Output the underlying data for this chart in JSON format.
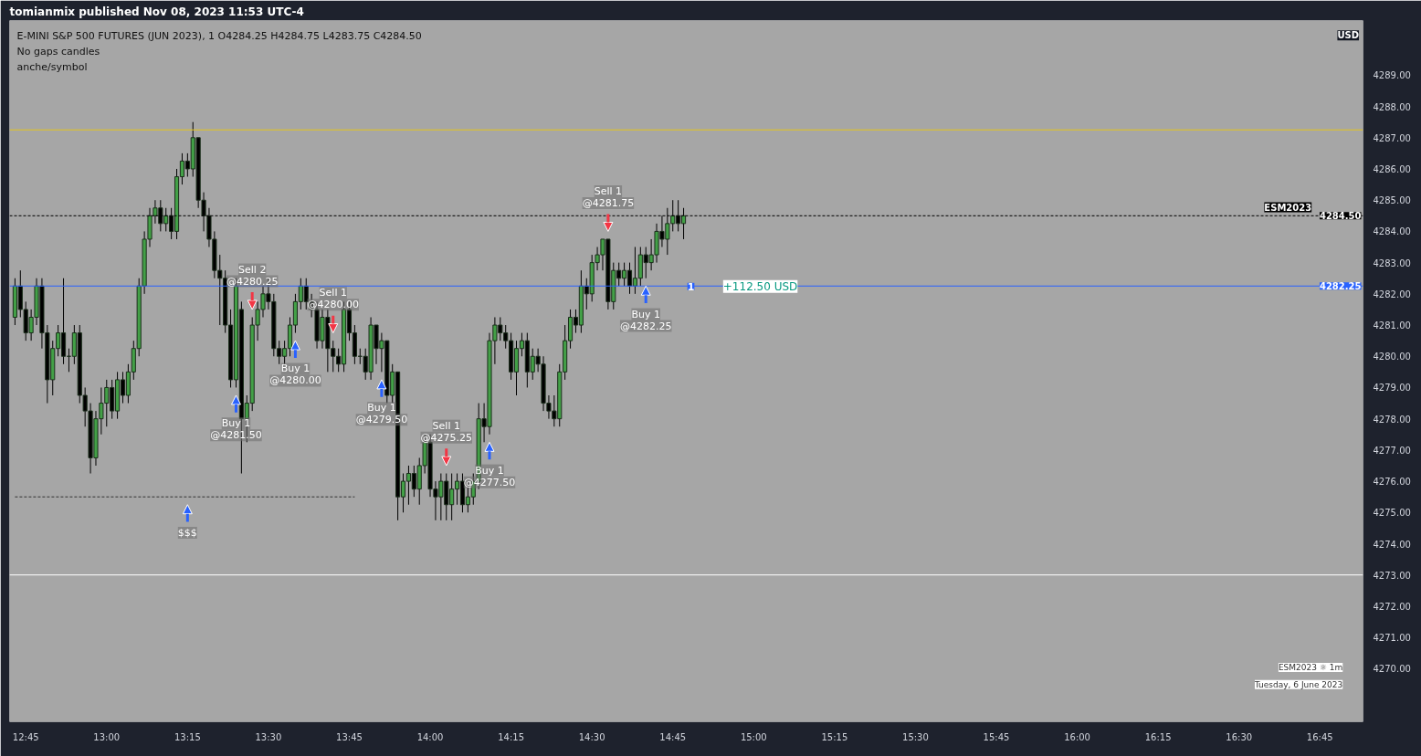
{
  "chart_data": {
    "type": "candlestick",
    "title": "E-MINI S&P 500 FUTURES (JUN 2023), 1  O4284.25  H4284.75  L4283.75  C4284.50",
    "x": [
      "2023-06-06T12:43",
      "2023-06-06T12:44",
      "2023-06-06T12:45",
      "2023-06-06T12:46",
      "2023-06-06T12:47",
      "2023-06-06T12:48",
      "2023-06-06T12:49",
      "2023-06-06T12:50",
      "2023-06-06T12:51",
      "2023-06-06T12:52",
      "2023-06-06T12:53",
      "2023-06-06T12:54",
      "2023-06-06T12:55",
      "2023-06-06T12:56",
      "2023-06-06T12:57",
      "2023-06-06T12:58",
      "2023-06-06T12:59",
      "2023-06-06T13:00",
      "2023-06-06T13:01",
      "2023-06-06T13:02",
      "2023-06-06T13:03",
      "2023-06-06T13:04",
      "2023-06-06T13:05",
      "2023-06-06T13:06",
      "2023-06-06T13:07",
      "2023-06-06T13:08",
      "2023-06-06T13:09",
      "2023-06-06T13:10",
      "2023-06-06T13:11",
      "2023-06-06T13:12",
      "2023-06-06T13:13",
      "2023-06-06T13:14",
      "2023-06-06T13:15",
      "2023-06-06T13:16",
      "2023-06-06T13:17",
      "2023-06-06T13:18",
      "2023-06-06T13:19",
      "2023-06-06T13:20",
      "2023-06-06T13:21",
      "2023-06-06T13:22",
      "2023-06-06T13:23",
      "2023-06-06T13:24",
      "2023-06-06T13:25",
      "2023-06-06T13:26",
      "2023-06-06T13:27",
      "2023-06-06T13:28",
      "2023-06-06T13:29",
      "2023-06-06T13:30",
      "2023-06-06T13:31",
      "2023-06-06T13:32",
      "2023-06-06T13:33",
      "2023-06-06T13:34",
      "2023-06-06T13:35",
      "2023-06-06T13:36",
      "2023-06-06T13:37",
      "2023-06-06T13:38",
      "2023-06-06T13:39",
      "2023-06-06T13:40",
      "2023-06-06T13:41",
      "2023-06-06T13:42",
      "2023-06-06T13:43",
      "2023-06-06T13:44",
      "2023-06-06T13:45",
      "2023-06-06T13:46",
      "2023-06-06T13:47",
      "2023-06-06T13:48",
      "2023-06-06T13:49",
      "2023-06-06T13:50",
      "2023-06-06T13:51",
      "2023-06-06T13:52",
      "2023-06-06T13:53",
      "2023-06-06T13:54",
      "2023-06-06T13:55",
      "2023-06-06T13:56",
      "2023-06-06T13:57",
      "2023-06-06T13:58",
      "2023-06-06T13:59",
      "2023-06-06T14:00",
      "2023-06-06T14:01",
      "2023-06-06T14:02",
      "2023-06-06T14:03",
      "2023-06-06T14:04",
      "2023-06-06T14:05",
      "2023-06-06T14:06",
      "2023-06-06T14:07",
      "2023-06-06T14:08",
      "2023-06-06T14:09",
      "2023-06-06T14:10",
      "2023-06-06T14:11",
      "2023-06-06T14:12",
      "2023-06-06T14:13",
      "2023-06-06T14:14",
      "2023-06-06T14:15",
      "2023-06-06T14:16",
      "2023-06-06T14:17",
      "2023-06-06T14:18",
      "2023-06-06T14:19",
      "2023-06-06T14:20",
      "2023-06-06T14:21",
      "2023-06-06T14:22",
      "2023-06-06T14:23",
      "2023-06-06T14:24",
      "2023-06-06T14:25",
      "2023-06-06T14:26",
      "2023-06-06T14:27",
      "2023-06-06T14:28",
      "2023-06-06T14:29",
      "2023-06-06T14:30",
      "2023-06-06T14:31",
      "2023-06-06T14:32",
      "2023-06-06T14:33",
      "2023-06-06T14:34",
      "2023-06-06T14:35",
      "2023-06-06T14:36",
      "2023-06-06T14:37",
      "2023-06-06T14:38",
      "2023-06-06T14:39",
      "2023-06-06T14:40",
      "2023-06-06T14:41",
      "2023-06-06T14:42",
      "2023-06-06T14:43",
      "2023-06-06T14:44",
      "2023-06-06T14:45",
      "2023-06-06T14:46",
      "2023-06-06T14:47"
    ],
    "ohlc": [
      [
        4281.25,
        4282.5,
        4281.0,
        4282.25
      ],
      [
        4282.25,
        4282.75,
        4281.25,
        4281.5
      ],
      [
        4281.5,
        4281.75,
        4280.5,
        4280.75
      ],
      [
        4280.75,
        4281.5,
        4280.5,
        4281.25
      ],
      [
        4281.25,
        4282.5,
        4281.0,
        4282.25
      ],
      [
        4282.25,
        4282.5,
        4280.25,
        4280.75
      ],
      [
        4280.75,
        4281.0,
        4278.5,
        4279.25
      ],
      [
        4279.25,
        4280.5,
        4278.75,
        4280.25
      ],
      [
        4280.25,
        4281.0,
        4280.0,
        4280.75
      ],
      [
        4280.75,
        4282.5,
        4279.75,
        4280.0
      ],
      [
        4280.0,
        4280.25,
        4279.5,
        4280.0
      ],
      [
        4280.0,
        4281.0,
        4279.75,
        4280.75
      ],
      [
        4280.75,
        4281.0,
        4278.5,
        4278.75
      ],
      [
        4278.75,
        4279.0,
        4277.75,
        4278.25
      ],
      [
        4278.25,
        4278.5,
        4276.25,
        4276.75
      ],
      [
        4276.75,
        4278.25,
        4276.5,
        4278.0
      ],
      [
        4278.0,
        4279.0,
        4277.5,
        4278.5
      ],
      [
        4278.5,
        4279.25,
        4277.75,
        4279.0
      ],
      [
        4279.0,
        4279.25,
        4278.0,
        4278.25
      ],
      [
        4278.25,
        4279.5,
        4278.0,
        4279.25
      ],
      [
        4279.25,
        4279.5,
        4278.5,
        4278.75
      ],
      [
        4278.75,
        4279.75,
        4278.5,
        4279.5
      ],
      [
        4279.5,
        4280.5,
        4279.25,
        4280.25
      ],
      [
        4280.25,
        4282.5,
        4280.0,
        4282.25
      ],
      [
        4282.25,
        4284.0,
        4282.0,
        4283.75
      ],
      [
        4283.75,
        4284.75,
        4283.5,
        4284.5
      ],
      [
        4284.5,
        4285.0,
        4284.25,
        4284.75
      ],
      [
        4284.75,
        4285.0,
        4284.0,
        4284.25
      ],
      [
        4284.25,
        4284.75,
        4284.0,
        4284.5
      ],
      [
        4284.5,
        4284.75,
        4283.75,
        4284.0
      ],
      [
        4284.0,
        4286.0,
        4283.75,
        4285.75
      ],
      [
        4285.75,
        4286.5,
        4285.5,
        4286.25
      ],
      [
        4286.25,
        4286.5,
        4285.75,
        4286.0
      ],
      [
        4286.0,
        4287.5,
        4285.75,
        4287.0
      ],
      [
        4287.0,
        4287.0,
        4284.75,
        4285.0
      ],
      [
        4285.0,
        4285.25,
        4284.0,
        4284.5
      ],
      [
        4284.5,
        4284.75,
        4283.5,
        4283.75
      ],
      [
        4283.75,
        4284.0,
        4282.5,
        4282.75
      ],
      [
        4282.75,
        4283.25,
        4281.0,
        4282.5
      ],
      [
        4282.5,
        4282.75,
        4280.75,
        4281.0
      ],
      [
        4281.0,
        4281.5,
        4279.0,
        4279.25
      ],
      [
        4279.25,
        4282.5,
        4279.0,
        4282.25
      ],
      [
        4281.5,
        4281.75,
        4276.25,
        4278.0
      ],
      [
        4278.0,
        4278.75,
        4277.25,
        4278.5
      ],
      [
        4278.5,
        4281.25,
        4278.25,
        4281.0
      ],
      [
        4281.0,
        4281.75,
        4280.5,
        4281.5
      ],
      [
        4281.5,
        4282.25,
        4281.25,
        4282.0
      ],
      [
        4282.0,
        4282.5,
        4281.5,
        4281.75
      ],
      [
        4281.75,
        4282.0,
        4280.0,
        4280.25
      ],
      [
        4280.25,
        4280.5,
        4279.75,
        4280.0
      ],
      [
        4280.0,
        4280.5,
        4279.75,
        4280.25
      ],
      [
        4280.25,
        4281.25,
        4280.0,
        4281.0
      ],
      [
        4281.0,
        4282.0,
        4280.75,
        4281.75
      ],
      [
        4281.75,
        4282.5,
        4281.5,
        4282.25
      ],
      [
        4282.25,
        4282.5,
        4281.5,
        4281.75
      ],
      [
        4281.75,
        4282.0,
        4281.25,
        4281.5
      ],
      [
        4281.5,
        4281.75,
        4280.25,
        4280.5
      ],
      [
        4280.5,
        4281.5,
        4280.25,
        4281.25
      ],
      [
        4281.25,
        4281.5,
        4279.5,
        4280.25
      ],
      [
        4280.25,
        4280.5,
        4279.5,
        4280.0
      ],
      [
        4280.0,
        4280.25,
        4279.5,
        4279.75
      ],
      [
        4279.75,
        4281.75,
        4279.5,
        4281.5
      ],
      [
        4281.5,
        4281.75,
        4280.5,
        4280.75
      ],
      [
        4280.75,
        4281.0,
        4279.75,
        4280.0
      ],
      [
        4280.0,
        4280.25,
        4279.75,
        4280.0
      ],
      [
        4280.0,
        4280.25,
        4279.25,
        4279.5
      ],
      [
        4279.5,
        4281.25,
        4279.25,
        4281.0
      ],
      [
        4281.0,
        4281.0,
        4279.75,
        4280.25
      ],
      [
        4280.25,
        4280.75,
        4279.5,
        4280.5
      ],
      [
        4280.5,
        4280.5,
        4278.5,
        4278.75
      ],
      [
        4278.75,
        4279.75,
        4278.5,
        4279.5
      ],
      [
        4279.5,
        4279.5,
        4274.75,
        4275.5
      ],
      [
        4275.5,
        4276.25,
        4275.0,
        4276.0
      ],
      [
        4276.0,
        4276.5,
        4275.25,
        4276.25
      ],
      [
        4276.25,
        4276.5,
        4275.5,
        4275.75
      ],
      [
        4275.75,
        4276.75,
        4275.25,
        4276.5
      ],
      [
        4276.5,
        4277.5,
        4276.25,
        4277.25
      ],
      [
        4277.25,
        4277.5,
        4275.5,
        4275.75
      ],
      [
        4275.75,
        4276.0,
        4274.75,
        4275.5
      ],
      [
        4275.5,
        4276.25,
        4274.75,
        4276.0
      ],
      [
        4276.0,
        4276.25,
        4274.75,
        4275.25
      ],
      [
        4275.25,
        4276.25,
        4274.75,
        4275.75
      ],
      [
        4275.75,
        4276.25,
        4275.25,
        4276.0
      ],
      [
        4276.0,
        4276.25,
        4275.0,
        4275.25
      ],
      [
        4275.25,
        4276.0,
        4275.0,
        4275.5
      ],
      [
        4275.5,
        4276.25,
        4275.25,
        4276.0
      ],
      [
        4276.0,
        4278.5,
        4275.75,
        4278.0
      ],
      [
        4278.0,
        4278.5,
        4277.25,
        4277.75
      ],
      [
        4277.75,
        4280.75,
        4277.5,
        4280.5
      ],
      [
        4280.5,
        4281.25,
        4279.75,
        4281.0
      ],
      [
        4281.0,
        4281.25,
        4280.5,
        4280.75
      ],
      [
        4280.75,
        4281.0,
        4280.25,
        4280.5
      ],
      [
        4280.5,
        4280.75,
        4279.25,
        4279.5
      ],
      [
        4279.5,
        4280.5,
        4278.75,
        4280.25
      ],
      [
        4280.25,
        4280.75,
        4280.0,
        4280.5
      ],
      [
        4280.5,
        4280.75,
        4279.0,
        4279.5
      ],
      [
        4279.5,
        4280.25,
        4279.25,
        4280.0
      ],
      [
        4280.0,
        4280.25,
        4279.5,
        4279.75
      ],
      [
        4279.75,
        4280.0,
        4278.25,
        4278.5
      ],
      [
        4278.5,
        4278.75,
        4278.0,
        4278.25
      ],
      [
        4278.25,
        4278.75,
        4277.75,
        4278.0
      ],
      [
        4278.0,
        4279.75,
        4277.75,
        4279.5
      ],
      [
        4279.5,
        4281.0,
        4279.25,
        4280.5
      ],
      [
        4280.5,
        4281.5,
        4280.25,
        4281.25
      ],
      [
        4281.25,
        4281.5,
        4280.75,
        4281.0
      ],
      [
        4281.0,
        4282.75,
        4280.75,
        4282.25
      ],
      [
        4282.25,
        4282.5,
        4281.5,
        4282.0
      ],
      [
        4282.0,
        4283.25,
        4281.75,
        4283.0
      ],
      [
        4283.0,
        4283.5,
        4282.75,
        4283.25
      ],
      [
        4283.25,
        4283.75,
        4282.75,
        4283.75
      ],
      [
        4283.75,
        4283.75,
        4281.5,
        4281.75
      ],
      [
        4281.75,
        4283.0,
        4281.5,
        4282.75
      ],
      [
        4282.75,
        4283.0,
        4282.25,
        4282.5
      ],
      [
        4282.5,
        4283.0,
        4282.25,
        4282.75
      ],
      [
        4282.75,
        4283.0,
        4282.0,
        4282.25
      ],
      [
        4282.25,
        4283.5,
        4282.0,
        4282.5
      ],
      [
        4282.5,
        4283.5,
        4282.25,
        4283.25
      ],
      [
        4283.25,
        4283.5,
        4282.5,
        4283.0
      ],
      [
        4283.0,
        4283.75,
        4282.75,
        4283.25
      ],
      [
        4283.25,
        4284.25,
        4283.0,
        4284.0
      ],
      [
        4284.0,
        4284.5,
        4283.5,
        4283.75
      ],
      [
        4283.75,
        4284.75,
        4283.25,
        4284.25
      ],
      [
        4284.25,
        4285.0,
        4284.0,
        4284.5
      ],
      [
        4284.5,
        4285.0,
        4284.0,
        4284.25
      ],
      [
        4284.25,
        4284.75,
        4283.75,
        4284.5
      ]
    ],
    "series": [
      {
        "type": "line",
        "x": [
          "2023-06-06T12:43",
          "2023-06-06T13:46"
        ],
        "values": [
          4275.5,
          4275.5
        ],
        "color": "#333333",
        "line_style": "dotted"
      }
    ],
    "xlim": [
      "2023-06-06T12:42",
      "2023-06-06T16:53"
    ],
    "xticks": [
      {
        "value": "2023-06-06T12:45",
        "label": "12:45"
      },
      {
        "value": "2023-06-06T13:00",
        "label": "13:00"
      },
      {
        "value": "2023-06-06T13:15",
        "label": "13:15"
      },
      {
        "value": "2023-06-06T13:30",
        "label": "13:30"
      },
      {
        "value": "2023-06-06T13:45",
        "label": "13:45"
      },
      {
        "value": "2023-06-06T14:00",
        "label": "14:00"
      },
      {
        "value": "2023-06-06T14:15",
        "label": "14:15"
      },
      {
        "value": "2023-06-06T14:30",
        "label": "14:30"
      },
      {
        "value": "2023-06-06T14:45",
        "label": "14:45"
      },
      {
        "value": "2023-06-06T15:00",
        "label": "15:00"
      },
      {
        "value": "2023-06-06T15:15",
        "label": "15:15"
      },
      {
        "value": "2023-06-06T15:30",
        "label": "15:30"
      },
      {
        "value": "2023-06-06T15:45",
        "label": "15:45"
      },
      {
        "value": "2023-06-06T16:00",
        "label": "16:00"
      },
      {
        "value": "2023-06-06T16:15",
        "label": "16:15"
      },
      {
        "value": "2023-06-06T16:30",
        "label": "16:30"
      },
      {
        "value": "2023-06-06T16:45",
        "label": "16:45"
      }
    ],
    "ylim": [
      4268.3,
      4290.75
    ],
    "yticks": [
      {
        "value": 4270,
        "label": "4270.00"
      },
      {
        "value": 4271,
        "label": "4271.00"
      },
      {
        "value": 4272,
        "label": "4272.00"
      },
      {
        "value": 4273,
        "label": "4273.00"
      },
      {
        "value": 4274,
        "label": "4274.00"
      },
      {
        "value": 4275,
        "label": "4275.00"
      },
      {
        "value": 4276,
        "label": "4276.00"
      },
      {
        "value": 4277,
        "label": "4277.00"
      },
      {
        "value": 4278,
        "label": "4278.00"
      },
      {
        "value": 4279,
        "label": "4279.00"
      },
      {
        "value": 4280,
        "label": "4280.00"
      },
      {
        "value": 4281,
        "label": "4281.00"
      },
      {
        "value": 4282,
        "label": "4282.00"
      },
      {
        "value": 4283,
        "label": "4283.00"
      },
      {
        "value": 4284,
        "label": "4284.00"
      },
      {
        "value": 4285,
        "label": "4285.00"
      },
      {
        "value": 4286,
        "label": "4286.00"
      },
      {
        "value": 4287,
        "label": "4287.00"
      },
      {
        "value": 4288,
        "label": "4288.00"
      },
      {
        "value": 4289,
        "label": "4289.00"
      }
    ],
    "ref_lines": [
      {
        "axis": "y",
        "value": 4287.25,
        "color": "#e6c619",
        "line_style": "solid"
      },
      {
        "axis": "y",
        "value": 4284.5,
        "label": "4284.50",
        "color": "#000000",
        "line_style": "dotted"
      },
      {
        "axis": "y",
        "value": 4282.25,
        "label": "4282.25",
        "color": "#2962ff",
        "line_style": "solid"
      },
      {
        "axis": "y",
        "value": 4273.0,
        "color": "#ffffff",
        "line_style": "solid"
      }
    ],
    "annotations": [
      "tomianmix published Nov 08, 2023 11:53 UTC-4",
      "No gaps candles",
      "anche/symbol",
      "USD",
      "ESM2023 ☼ 1m",
      "Tuesday, 6 June 2023",
      "1",
      "+112.50 USD",
      "ESM2023",
      {
        "text": "Buy 1\n@4281.50",
        "x": "2023-06-06T13:24",
        "y": 4279.0
      },
      {
        "text": "Sell 2\n@4280.25",
        "x": "2023-06-06T13:27",
        "y": 4281.25
      },
      {
        "text": "Buy 1\n@4280.00",
        "x": "2023-06-06T13:35",
        "y": 4280.75
      },
      {
        "text": "Sell 1\n@4280.00",
        "x": "2023-06-06T13:42",
        "y": 4280.5
      },
      {
        "text": "Buy 1\n@4279.50",
        "x": "2023-06-06T13:51",
        "y": 4279.5
      },
      {
        "text": "Sell 1\n@4275.25",
        "x": "2023-06-06T14:03",
        "y": 4276.25
      },
      {
        "text": "Buy 1\n@4277.50",
        "x": "2023-06-06T14:11",
        "y": 4277.5
      },
      {
        "text": "Sell 1\n@4281.75",
        "x": "2023-06-06T14:33",
        "y": 4283.75
      },
      {
        "text": "Buy 1\n@4282.25",
        "x": "2023-06-06T14:40",
        "y": 4282.5
      },
      {
        "text": "$$$",
        "x": "2023-06-06T13:15",
        "y": 4275.5
      }
    ]
  }
}
